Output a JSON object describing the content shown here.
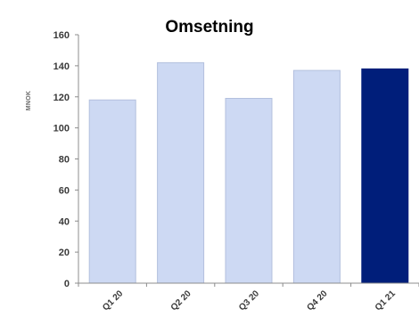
{
  "chart_data": {
    "type": "bar",
    "title": "Omsetning",
    "ylabel": "MNOK",
    "xlabel": "",
    "categories": [
      "Q1 20",
      "Q2 20",
      "Q3 20",
      "Q4 20",
      "Q1 21"
    ],
    "values": [
      118,
      142,
      119,
      137,
      138
    ],
    "ylim": [
      0,
      160
    ],
    "yticks": [
      0,
      20,
      40,
      60,
      80,
      100,
      120,
      140,
      160
    ],
    "grid": false,
    "legend": "none",
    "colors": {
      "default_bar": "#cdd9f3",
      "default_bar_edge": "#b3c0de",
      "highlight_bar": "#001e7a",
      "highlight_index": 4,
      "axis": "#8c8c8c"
    }
  }
}
